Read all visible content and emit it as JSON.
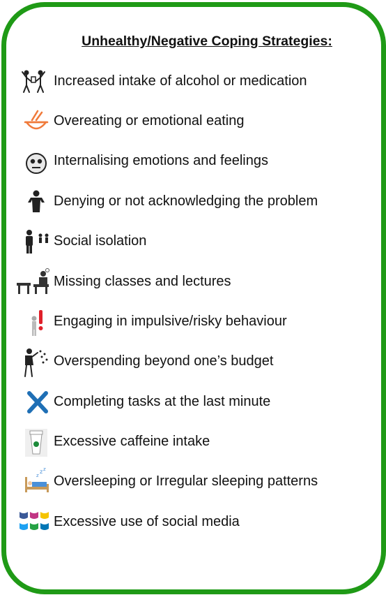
{
  "title": "Unhealthy/Negative Coping Strategies:",
  "colors": {
    "border": "#1f9a16",
    "text": "#111111"
  },
  "items": [
    {
      "label": "Increased intake of  alcohol or medication",
      "icon": "people-drinking-icon"
    },
    {
      "label": "Overeating or emotional eating",
      "icon": "food-bowl-icon"
    },
    {
      "label": "Internalising emotions and feelings",
      "icon": "sad-face-icon"
    },
    {
      "label": "Denying or not acknowledging the problem",
      "icon": "shrugging-person-icon"
    },
    {
      "label": "Social isolation",
      "icon": "isolated-person-icon"
    },
    {
      "label": "Missing classes and lectures",
      "icon": "empty-desks-icon"
    },
    {
      "label": "Engaging in impulsive/risky behaviour",
      "icon": "person-warning-icon"
    },
    {
      "label": "Overspending beyond one’s budget",
      "icon": "person-throwing-money-icon"
    },
    {
      "label": "Completing tasks at the last minute",
      "icon": "blue-cross-icon"
    },
    {
      "label": "Excessive caffeine intake",
      "icon": "coffee-cup-icon"
    },
    {
      "label": "Oversleeping or Irregular sleeping patterns",
      "icon": "bed-sleep-icon"
    },
    {
      "label": "Excessive use of social media",
      "icon": "social-media-icons"
    }
  ]
}
